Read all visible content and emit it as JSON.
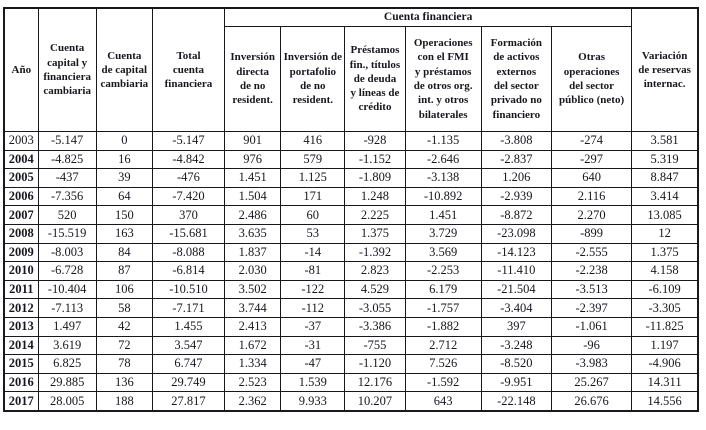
{
  "table": {
    "group_header": "Cuenta financiera",
    "columns": [
      {
        "label": "Año"
      },
      {
        "label": "Cuenta\ncapital y\nfinanciera\ncambiaria"
      },
      {
        "label": "Cuenta\nde capital\ncambiaria"
      },
      {
        "label": "Total\ncuenta\nfinanciera"
      },
      {
        "label": "Inversión\ndirecta\nde no\nresident."
      },
      {
        "label": "Inversión de\nportafolio\nde no\nresident."
      },
      {
        "label": "Préstamos\nfin., títulos\nde deuda\ny líneas de\ncrédito"
      },
      {
        "label": "Operaciones\ncon el FMI\ny préstamos\nde otros org.\nint. y otros\nbilaterales"
      },
      {
        "label": "Formación\nde activos\nexternos\ndel sector\nprivado no\nfinanciero"
      },
      {
        "label": "Otras\noperaciones\ndel sector\npúblico (neto)"
      },
      {
        "label": "Variación\nde reservas\ninternac."
      }
    ],
    "rows": [
      {
        "year": "2003",
        "year_bold": false,
        "values": [
          "-5.147",
          "0",
          "-5.147",
          "901",
          "416",
          "-928",
          "-1.135",
          "-3.808",
          "-274",
          "3.581"
        ]
      },
      {
        "year": "2004",
        "year_bold": true,
        "values": [
          "-4.825",
          "16",
          "-4.842",
          "976",
          "579",
          "-1.152",
          "-2.646",
          "-2.837",
          "-297",
          "5.319"
        ]
      },
      {
        "year": "2005",
        "year_bold": true,
        "values": [
          "-437",
          "39",
          "-476",
          "1.451",
          "1.125",
          "-1.809",
          "-3.138",
          "1.206",
          "640",
          "8.847"
        ]
      },
      {
        "year": "2006",
        "year_bold": true,
        "values": [
          "-7.356",
          "64",
          "-7.420",
          "1.504",
          "171",
          "1.248",
          "-10.892",
          "-2.939",
          "2.116",
          "3.414"
        ]
      },
      {
        "year": "2007",
        "year_bold": true,
        "values": [
          "520",
          "150",
          "370",
          "2.486",
          "60",
          "2.225",
          "1.451",
          "-8.872",
          "2.270",
          "13.085"
        ]
      },
      {
        "year": "2008",
        "year_bold": true,
        "values": [
          "-15.519",
          "163",
          "-15.681",
          "3.635",
          "53",
          "1.375",
          "3.729",
          "-23.098",
          "-899",
          "12"
        ]
      },
      {
        "year": "2009",
        "year_bold": true,
        "values": [
          "-8.003",
          "84",
          "-8.088",
          "1.837",
          "-14",
          "-1.392",
          "3.569",
          "-14.123",
          "-2.555",
          "1.375"
        ]
      },
      {
        "year": "2010",
        "year_bold": true,
        "values": [
          "-6.728",
          "87",
          "-6.814",
          "2.030",
          "-81",
          "2.823",
          "-2.253",
          "-11.410",
          "-2.238",
          "4.158"
        ]
      },
      {
        "year": "2011",
        "year_bold": true,
        "values": [
          "-10.404",
          "106",
          "-10.510",
          "3.502",
          "-122",
          "4.529",
          "6.179",
          "-21.504",
          "-3.513",
          "-6.109"
        ]
      },
      {
        "year": "2012",
        "year_bold": true,
        "values": [
          "-7.113",
          "58",
          "-7.171",
          "3.744",
          "-112",
          "-3.055",
          "-1.757",
          "-3.404",
          "-2.397",
          "-3.305"
        ]
      },
      {
        "year": "2013",
        "year_bold": true,
        "values": [
          "1.497",
          "42",
          "1.455",
          "2.413",
          "-37",
          "-3.386",
          "-1.882",
          "397",
          "-1.061",
          "-11.825"
        ]
      },
      {
        "year": "2014",
        "year_bold": true,
        "values": [
          "3.619",
          "72",
          "3.547",
          "1.672",
          "-31",
          "-755",
          "2.712",
          "-3.248",
          "-96",
          "1.197"
        ]
      },
      {
        "year": "2015",
        "year_bold": true,
        "values": [
          "6.825",
          "78",
          "6.747",
          "1.334",
          "-47",
          "-1.120",
          "7.526",
          "-8.520",
          "-3.983",
          "-4.906"
        ]
      },
      {
        "year": "2016",
        "year_bold": true,
        "values": [
          "29.885",
          "136",
          "29.749",
          "2.523",
          "1.539",
          "12.176",
          "-1.592",
          "-9.951",
          "25.267",
          "14.311"
        ]
      },
      {
        "year": "2017",
        "year_bold": true,
        "values": [
          "28.005",
          "188",
          "27.817",
          "2.362",
          "9.933",
          "10.207",
          "643",
          "-22.148",
          "26.676",
          "14.556"
        ]
      }
    ]
  }
}
